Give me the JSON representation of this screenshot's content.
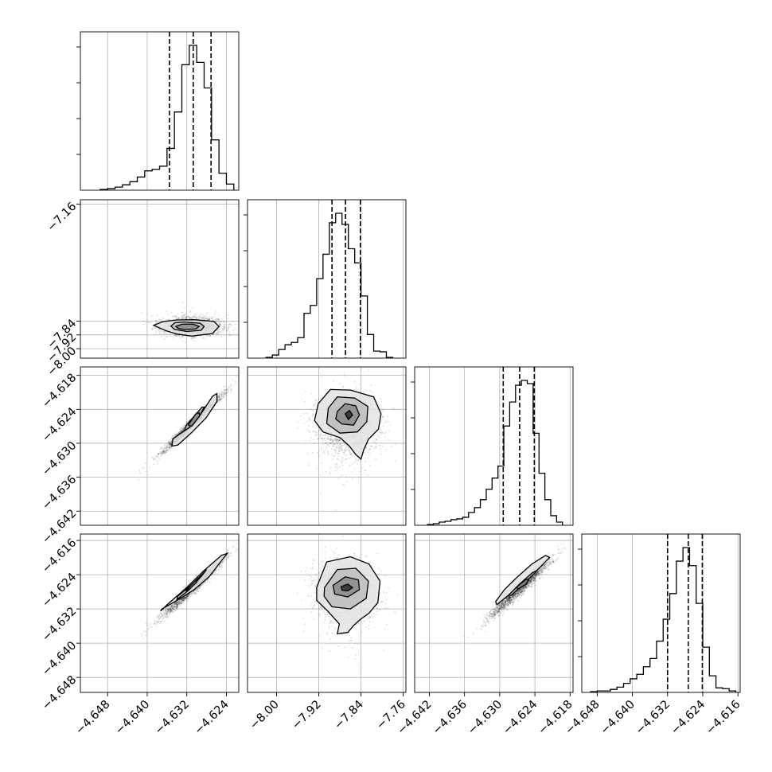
{
  "chart_data": {
    "type": "corner",
    "title": "",
    "parameter_labels": [
      "",
      "",
      "",
      ""
    ],
    "grid": true,
    "quantile_lines": "dashed",
    "axes": [
      {
        "xlim": [
          -4.6535,
          -4.6215
        ],
        "ticks": [
          -4.648,
          -4.64,
          -4.632,
          -4.624
        ],
        "tick_labels": [
          "−4.648",
          "−4.640",
          "−4.632",
          "−4.624"
        ]
      },
      {
        "xlim": [
          -8.055,
          -7.755
        ],
        "ticks": [
          -8.0,
          -7.92,
          -7.84,
          -7.76
        ],
        "tick_labels": [
          "−8.00",
          "−7.92",
          "−7.84",
          "−7.76"
        ]
      },
      {
        "xlim": [
          -4.6445,
          -4.6175
        ],
        "ticks": [
          -4.642,
          -4.636,
          -4.63,
          -4.624,
          -4.618
        ],
        "tick_labels": [
          "−4.642",
          "−4.636",
          "−4.630",
          "−4.624",
          "−4.618"
        ]
      },
      {
        "xlim": [
          -4.6515,
          -4.6155
        ],
        "ticks": [
          -4.648,
          -4.64,
          -4.632,
          -4.624,
          -4.616
        ],
        "tick_labels": [
          "−4.648",
          "−4.640",
          "−4.632",
          "−4.624",
          "−4.616"
        ]
      }
    ],
    "y_axes": [
      null,
      {
        "ylim": [
          -8.055,
          -7.135
        ],
        "ticks": [
          -7.16,
          -7.84,
          -7.92,
          -8.0
        ],
        "tick_labels": [
          "−7.16",
          "−7.84",
          "−7.92",
          "−8.00"
        ]
      },
      {
        "ylim": [
          -4.6445,
          -4.6165
        ],
        "ticks": [
          -4.618,
          -4.624,
          -4.63,
          -4.636,
          -4.642
        ],
        "tick_labels": [
          "−4.618",
          "−4.624",
          "−4.630",
          "−4.636",
          "−4.642"
        ]
      },
      {
        "ylim": [
          -4.6515,
          -4.6145
        ],
        "ticks": [
          -4.616,
          -4.624,
          -4.632,
          -4.64,
          -4.648
        ],
        "tick_labels": [
          "−4.616",
          "−4.624",
          "−4.632",
          "−4.640",
          "−4.648"
        ]
      }
    ],
    "histograms": [
      {
        "param": 0,
        "quantiles": [
          -4.6355,
          -4.6307,
          -4.6271
        ],
        "edges": [
          -4.6495,
          -4.648,
          -4.6465,
          -4.645,
          -4.6435,
          -4.642,
          -4.6405,
          -4.639,
          -4.6375,
          -4.636,
          -4.6345,
          -4.633,
          -4.6315,
          -4.63,
          -4.6285,
          -4.627,
          -4.6255,
          -4.624,
          -4.6225
        ],
        "counts": [
          1,
          2,
          4,
          7,
          11,
          17,
          25,
          27,
          31,
          54,
          101,
          162,
          187,
          165,
          132,
          65,
          22,
          8
        ]
      },
      {
        "param": 1,
        "quantiles": [
          -7.895,
          -7.8694,
          -7.8412
        ],
        "edges": [
          -8.02,
          -8.008,
          -7.996,
          -7.984,
          -7.972,
          -7.96,
          -7.948,
          -7.936,
          -7.924,
          -7.912,
          -7.9,
          -7.888,
          -7.876,
          -7.864,
          -7.852,
          -7.84,
          -7.828,
          -7.816,
          -7.804,
          -7.792,
          -7.78
        ],
        "counts": [
          1,
          4,
          11,
          17,
          20,
          26,
          57,
          67,
          101,
          132,
          172,
          184,
          170,
          139,
          121,
          79,
          30,
          9,
          8,
          1
        ]
      },
      {
        "param": 2,
        "quantiles": [
          -4.6294,
          -4.6266,
          -4.6241
        ],
        "edges": [
          -4.6423,
          -4.6413,
          -4.6403,
          -4.6393,
          -4.6383,
          -4.6373,
          -4.6363,
          -4.6353,
          -4.6343,
          -4.6333,
          -4.6323,
          -4.6313,
          -4.6303,
          -4.6293,
          -4.6283,
          -4.6273,
          -4.6263,
          -4.6253,
          -4.6243,
          -4.6233,
          -4.6223,
          -4.6213,
          -4.6203,
          -4.6193
        ],
        "counts": [
          1,
          2,
          4,
          5,
          7,
          8,
          10,
          16,
          22,
          32,
          45,
          59,
          74,
          124,
          154,
          175,
          181,
          177,
          115,
          65,
          32,
          12,
          4
        ]
      },
      {
        "param": 3,
        "quantiles": [
          -4.632,
          -4.6273,
          -4.6241
        ],
        "edges": [
          -4.6495,
          -4.648,
          -4.6465,
          -4.645,
          -4.6435,
          -4.642,
          -4.6405,
          -4.639,
          -4.6375,
          -4.636,
          -4.6345,
          -4.633,
          -4.6315,
          -4.63,
          -4.6285,
          -4.627,
          -4.6255,
          -4.624,
          -4.6225,
          -4.621,
          -4.6195,
          -4.618,
          -4.6165
        ],
        "counts": [
          1,
          2,
          2,
          4,
          7,
          12,
          18,
          24,
          34,
          45,
          68,
          97,
          131,
          174,
          192,
          168,
          118,
          60,
          22,
          6,
          5,
          2
        ]
      }
    ],
    "pairs": [
      {
        "x_param": 0,
        "y_param": 1,
        "contours": [
          [
            [
              -4.6387,
              -7.864
            ],
            [
              -4.6368,
              -7.843
            ],
            [
              -4.634,
              -7.833
            ],
            [
              -4.6305,
              -7.8315
            ],
            [
              -4.6265,
              -7.842
            ],
            [
              -4.6255,
              -7.871
            ],
            [
              -4.6268,
              -7.912
            ],
            [
              -4.631,
              -7.927
            ],
            [
              -4.634,
              -7.915
            ],
            [
              -4.6361,
              -7.897
            ],
            [
              -4.6374,
              -7.881
            ]
          ],
          [
            [
              -4.6352,
              -7.869
            ],
            [
              -4.6344,
              -7.849
            ],
            [
              -4.6325,
              -7.845
            ],
            [
              -4.6293,
              -7.852
            ],
            [
              -4.6285,
              -7.871
            ],
            [
              -4.6291,
              -7.893
            ],
            [
              -4.632,
              -7.9
            ],
            [
              -4.6345,
              -7.888
            ]
          ],
          [
            [
              -4.6342,
              -7.871
            ],
            [
              -4.633,
              -7.858
            ],
            [
              -4.6308,
              -7.857
            ],
            [
              -4.6295,
              -7.871
            ],
            [
              -4.6302,
              -7.886
            ],
            [
              -4.6325,
              -7.889
            ],
            [
              -4.6337,
              -7.882
            ]
          ]
        ]
      },
      {
        "x_param": 0,
        "y_param": 2,
        "contours": [
          [
            [
              -4.6348,
              -4.6292
            ],
            [
              -4.632,
              -4.6275
            ],
            [
              -4.6292,
              -4.6249
            ],
            [
              -4.6268,
              -4.6217
            ],
            [
              -4.6259,
              -4.6212
            ],
            [
              -4.6259,
              -4.6226
            ],
            [
              -4.6281,
              -4.6255
            ],
            [
              -4.631,
              -4.6281
            ],
            [
              -4.6338,
              -4.6303
            ],
            [
              -4.635,
              -4.6305
            ]
          ],
          [
            [
              -4.6321,
              -4.6268
            ],
            [
              -4.6298,
              -4.6245
            ],
            [
              -4.6289,
              -4.6236
            ],
            [
              -4.6285,
              -4.6236
            ],
            [
              -4.6292,
              -4.6248
            ],
            [
              -4.6314,
              -4.6272
            ],
            [
              -4.6325,
              -4.6278
            ]
          ],
          [
            [
              -4.6317,
              -4.6268
            ],
            [
              -4.6302,
              -4.6248
            ],
            [
              -4.6295,
              -4.6246
            ],
            [
              -4.6294,
              -4.6252
            ],
            [
              -4.631,
              -4.627
            ]
          ]
        ]
      },
      {
        "x_param": 1,
        "y_param": 2,
        "contours": [
          [
            [
              -7.921,
              -4.623
            ],
            [
              -7.898,
              -4.6205
            ],
            [
              -7.86,
              -4.6206
            ],
            [
              -7.816,
              -4.6218
            ],
            [
              -7.802,
              -4.6248
            ],
            [
              -7.807,
              -4.6275
            ],
            [
              -7.826,
              -4.6293
            ],
            [
              -7.835,
              -4.6312
            ],
            [
              -7.84,
              -4.6328
            ],
            [
              -7.85,
              -4.632
            ],
            [
              -7.862,
              -4.6305
            ],
            [
              -7.88,
              -4.629
            ],
            [
              -7.912,
              -4.628
            ],
            [
              -7.928,
              -4.626
            ]
          ],
          [
            [
              -7.902,
              -4.6238
            ],
            [
              -7.885,
              -4.6218
            ],
            [
              -7.852,
              -4.622
            ],
            [
              -7.827,
              -4.6235
            ],
            [
              -7.829,
              -4.6262
            ],
            [
              -7.847,
              -4.628
            ],
            [
              -7.88,
              -4.6282
            ],
            [
              -7.905,
              -4.6265
            ]
          ],
          [
            [
              -7.885,
              -4.6244
            ],
            [
              -7.87,
              -4.623
            ],
            [
              -7.85,
              -4.6234
            ],
            [
              -7.843,
              -4.625
            ],
            [
              -7.854,
              -4.6268
            ],
            [
              -7.876,
              -4.6266
            ],
            [
              -7.888,
              -4.6257
            ]
          ],
          [
            [
              -7.87,
              -4.6248
            ],
            [
              -7.862,
              -4.6242
            ],
            [
              -7.856,
              -4.625
            ],
            [
              -7.864,
              -4.6258
            ]
          ]
        ]
      },
      {
        "x_param": 0,
        "y_param": 3,
        "contours": [
          [
            [
              -4.637,
              -4.632
            ],
            [
              -4.634,
              -4.63
            ],
            [
              -4.6305,
              -4.6275
            ],
            [
              -4.6275,
              -4.6245
            ],
            [
              -4.6245,
              -4.62
            ],
            [
              -4.6238,
              -4.619
            ],
            [
              -4.625,
              -4.6195
            ],
            [
              -4.6285,
              -4.623
            ],
            [
              -4.632,
              -4.627
            ],
            [
              -4.6355,
              -4.6305
            ],
            [
              -4.6373,
              -4.6325
            ]
          ],
          [
            [
              -4.6338,
              -4.629
            ],
            [
              -4.6312,
              -4.6265
            ],
            [
              -4.6288,
              -4.6238
            ],
            [
              -4.628,
              -4.6228
            ],
            [
              -4.629,
              -4.6243
            ],
            [
              -4.6318,
              -4.6278
            ],
            [
              -4.634,
              -4.6298
            ]
          ],
          [
            [
              -4.6322,
              -4.6278
            ],
            [
              -4.6306,
              -4.6258
            ],
            [
              -4.6297,
              -4.625
            ],
            [
              -4.63,
              -4.6258
            ],
            [
              -4.6316,
              -4.6275
            ]
          ]
        ]
      },
      {
        "x_param": 1,
        "y_param": 3,
        "contours": [
          [
            [
              -7.924,
              -4.627
            ],
            [
              -7.905,
              -4.621
            ],
            [
              -7.86,
              -4.6198
            ],
            [
              -7.825,
              -4.6215
            ],
            [
              -7.804,
              -4.6255
            ],
            [
              -7.808,
              -4.6305
            ],
            [
              -7.825,
              -4.633
            ],
            [
              -7.842,
              -4.6345
            ],
            [
              -7.855,
              -4.636
            ],
            [
              -7.865,
              -4.6375
            ],
            [
              -7.885,
              -4.6378
            ],
            [
              -7.881,
              -4.6355
            ],
            [
              -7.903,
              -4.6325
            ],
            [
              -7.924,
              -4.63
            ]
          ],
          [
            [
              -7.909,
              -4.627
            ],
            [
              -7.885,
              -4.6228
            ],
            [
              -7.85,
              -4.6225
            ],
            [
              -7.826,
              -4.6255
            ],
            [
              -7.83,
              -4.6295
            ],
            [
              -7.86,
              -4.632
            ],
            [
              -7.895,
              -4.6315
            ],
            [
              -7.91,
              -4.629
            ]
          ],
          [
            [
              -7.893,
              -4.6265
            ],
            [
              -7.87,
              -4.6245
            ],
            [
              -7.845,
              -4.6252
            ],
            [
              -7.843,
              -4.6275
            ],
            [
              -7.865,
              -4.6292
            ],
            [
              -7.89,
              -4.6285
            ]
          ],
          [
            [
              -7.878,
              -4.6268
            ],
            [
              -7.865,
              -4.6262
            ],
            [
              -7.856,
              -4.627
            ],
            [
              -7.865,
              -4.6278
            ],
            [
              -7.876,
              -4.6276
            ]
          ]
        ]
      },
      {
        "x_param": 2,
        "y_param": 3,
        "contours": [
          [
            [
              -4.6305,
              -4.631
            ],
            [
              -4.6285,
              -4.6288
            ],
            [
              -4.6262,
              -4.6262
            ],
            [
              -4.6233,
              -4.6225
            ],
            [
              -4.6215,
              -4.62
            ],
            [
              -4.6222,
              -4.6195
            ],
            [
              -4.6245,
              -4.6215
            ],
            [
              -4.6272,
              -4.6248
            ],
            [
              -4.6292,
              -4.6275
            ],
            [
              -4.6307,
              -4.6303
            ]
          ],
          [
            [
              -4.6285,
              -4.6288
            ],
            [
              -4.6266,
              -4.6262
            ],
            [
              -4.6244,
              -4.6235
            ],
            [
              -4.6236,
              -4.623
            ],
            [
              -4.6243,
              -4.624
            ],
            [
              -4.6262,
              -4.6265
            ],
            [
              -4.628,
              -4.6288
            ]
          ],
          [
            [
              -4.6272,
              -4.627
            ],
            [
              -4.6256,
              -4.6252
            ],
            [
              -4.625,
              -4.625
            ],
            [
              -4.6255,
              -4.6262
            ],
            [
              -4.6268,
              -4.6273
            ]
          ]
        ]
      }
    ]
  }
}
